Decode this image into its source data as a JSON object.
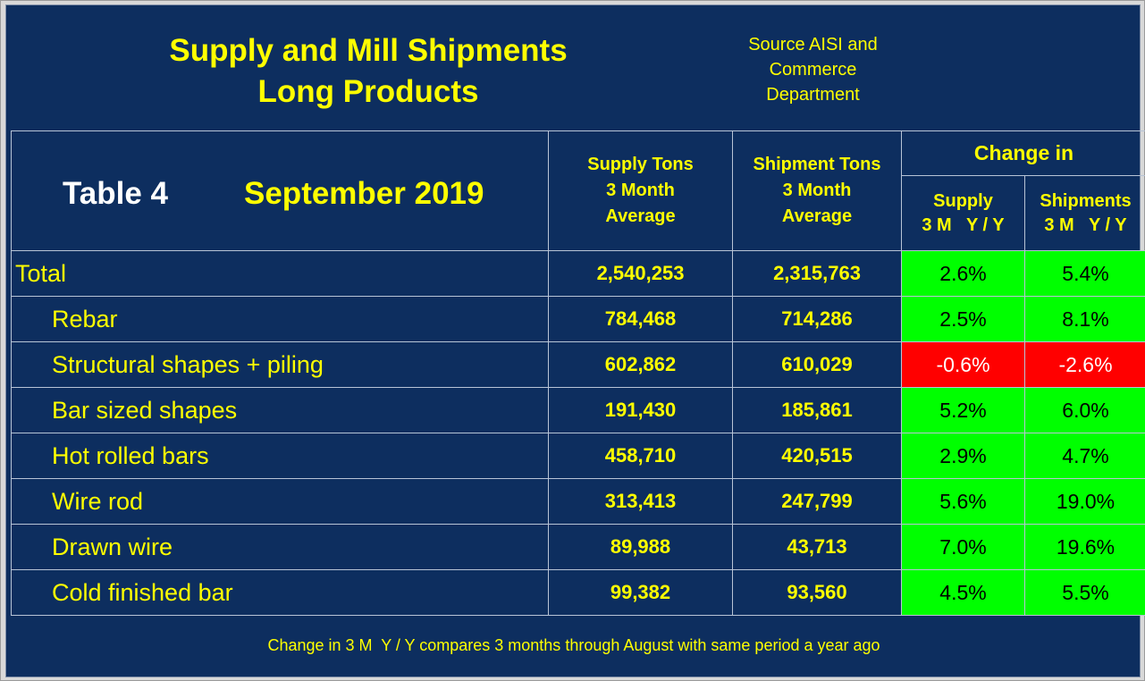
{
  "title": {
    "line1": "Supply and Mill Shipments",
    "line2": "Long Products"
  },
  "source": {
    "line1": "Source AISI and",
    "line2": "Commerce",
    "line3": "Department"
  },
  "table": {
    "number": "Table  4",
    "period": "September 2019",
    "headers": {
      "supply": [
        "Supply Tons",
        "3 Month",
        "Average"
      ],
      "shipment": [
        "Shipment Tons",
        "3 Month",
        "Average"
      ],
      "change_in": "Change in",
      "change_supply": [
        "Supply",
        "3 M   Y / Y"
      ],
      "change_shipments": [
        "Shipments",
        "3 M   Y / Y"
      ]
    },
    "rows": [
      {
        "label": "Total",
        "supply": "2,540,253",
        "shipment": "2,315,763",
        "chg_supply": "2.6%",
        "chg_shipments": "5.4%"
      },
      {
        "label": "Rebar",
        "supply": "784,468",
        "shipment": "714,286",
        "chg_supply": "2.5%",
        "chg_shipments": "8.1%"
      },
      {
        "label": "Structural shapes + piling",
        "supply": "602,862",
        "shipment": "610,029",
        "chg_supply": "-0.6%",
        "chg_shipments": "-2.6%"
      },
      {
        "label": "Bar sized shapes",
        "supply": "191,430",
        "shipment": "185,861",
        "chg_supply": "5.2%",
        "chg_shipments": "6.0%"
      },
      {
        "label": "Hot rolled bars",
        "supply": "458,710",
        "shipment": "420,515",
        "chg_supply": "2.9%",
        "chg_shipments": "4.7%"
      },
      {
        "label": "Wire rod",
        "supply": "313,413",
        "shipment": "247,799",
        "chg_supply": "5.6%",
        "chg_shipments": "19.0%"
      },
      {
        "label": "Drawn wire",
        "supply": "89,988",
        "shipment": "43,713",
        "chg_supply": "7.0%",
        "chg_shipments": "19.6%"
      },
      {
        "label": "Cold finished bar",
        "supply": "99,382",
        "shipment": "93,560",
        "chg_supply": "4.5%",
        "chg_shipments": "5.5%"
      }
    ]
  },
  "footer": "Change in 3 M  Y / Y compares 3 months through August with same period a year ago",
  "colors": {
    "background": "#0d2e5f",
    "text": "#ffff00",
    "positive": "#00ff00",
    "negative": "#ff0000"
  }
}
